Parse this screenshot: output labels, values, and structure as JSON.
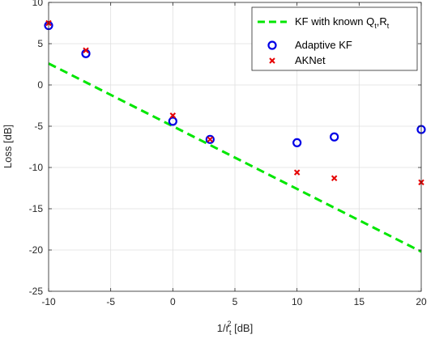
{
  "chart_data": {
    "type": "scatter",
    "xlabel": {
      "base": "1/r",
      "sub": "t",
      "sup": "2",
      "suffix": " [dB]"
    },
    "ylabel": "Loss [dB]",
    "xlim": [
      -10,
      20
    ],
    "ylim": [
      -25,
      10
    ],
    "xticks": [
      -10,
      -5,
      0,
      5,
      10,
      15,
      20
    ],
    "yticks": [
      -25,
      -20,
      -15,
      -10,
      -5,
      0,
      5,
      10
    ],
    "xtick_labels": [
      "-10",
      "-5",
      "0",
      "5",
      "10",
      "15",
      "20"
    ],
    "ytick_labels": [
      "-25",
      "-20",
      "-15",
      "-10",
      "-5",
      "0",
      "5",
      "10"
    ],
    "grid": true,
    "legend_position": "top-right",
    "series": [
      {
        "name": "KF with known Q_t,R_t",
        "legend": {
          "prefix": "KF with known Q",
          "sub1": "t",
          "mid": ",R",
          "sub2": "t"
        },
        "style": "dashed-line",
        "color": "#00e600",
        "x": [
          -10,
          20
        ],
        "y": [
          2.6,
          -20.2
        ]
      },
      {
        "name": "Adaptive KF",
        "style": "circle",
        "color": "#0000e6",
        "x": [
          -10,
          -7,
          0,
          3,
          10,
          13,
          20
        ],
        "y": [
          7.2,
          3.8,
          -4.4,
          -6.6,
          -7.0,
          -6.3,
          -5.4
        ]
      },
      {
        "name": "AKNet",
        "style": "x-marker",
        "color": "#e60000",
        "x": [
          -10,
          -7,
          0,
          3,
          10,
          13,
          20
        ],
        "y": [
          7.5,
          4.2,
          -3.7,
          -6.6,
          -10.6,
          -11.3,
          -11.8
        ]
      }
    ]
  }
}
